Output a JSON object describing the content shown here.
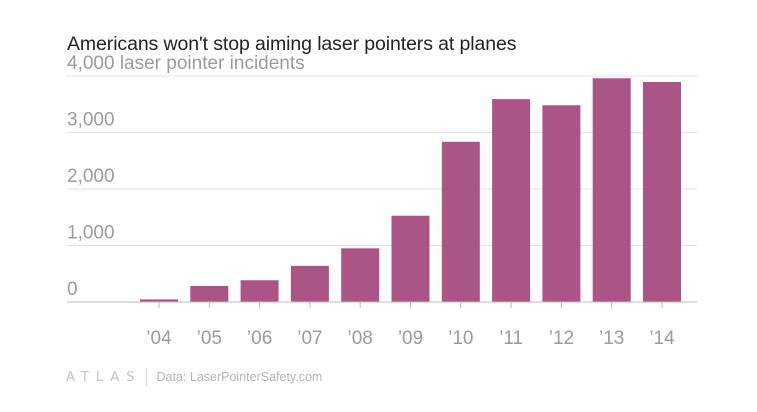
{
  "chart_data": {
    "type": "bar",
    "title": "Americans won't stop aiming laser pointers at planes",
    "ylabel": "laser pointer incidents",
    "top_tick_text": "4,000 laser pointer incidents",
    "categories": [
      "’04",
      "’05",
      "’06",
      "’07",
      "’08",
      "’09",
      "’10",
      "’11",
      "’12",
      "’13",
      "’14"
    ],
    "values": [
      46,
      283,
      385,
      640,
      950,
      1527,
      2836,
      3591,
      3482,
      3960,
      3894
    ],
    "ylim": [
      0,
      4000
    ],
    "yticks": [
      0,
      1000,
      2000,
      3000,
      4000
    ],
    "ytick_labels": [
      "0",
      "1,000",
      "2,000",
      "3,000",
      "4,000"
    ],
    "grid": true,
    "bar_color": "#ab5587"
  },
  "footer": {
    "brand": "ATLAS",
    "source": "Data: LaserPointerSafety.com"
  }
}
